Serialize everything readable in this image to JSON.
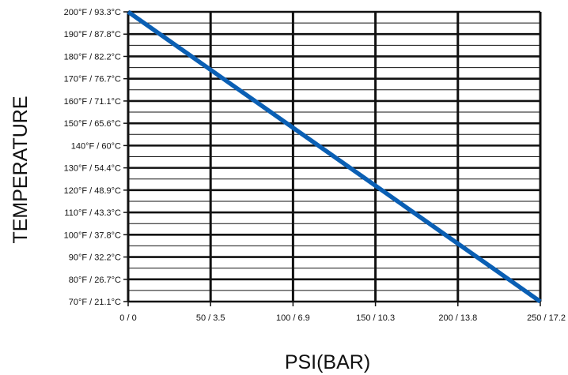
{
  "chart_data": {
    "type": "line",
    "xlabel": "PSI(BAR)",
    "ylabel": "TEMPERATURE",
    "x_ticks": [
      "0 / 0",
      "50 / 3.5",
      "100 / 6.9",
      "150 / 10.3",
      "200 / 13.8",
      "250 / 17.2"
    ],
    "x_tick_values": [
      0,
      50,
      100,
      150,
      200,
      250
    ],
    "y_ticks": [
      "70°F / 21.1°C",
      "80°F / 26.7°C",
      "90°F / 32.2°C",
      "100°F / 37.8°C",
      "110°F / 43.3°C",
      "120°F / 48.9°C",
      "130°F / 54.4°C",
      "140°F / 60°C",
      "150°F / 65.6°C",
      "160°F / 71.1°C",
      "170°F / 76.7°C",
      "180°F / 82.2°C",
      "190°F / 87.8°C",
      "200°F / 93.3°C"
    ],
    "y_tick_values": [
      70,
      80,
      90,
      100,
      110,
      120,
      130,
      140,
      150,
      160,
      170,
      180,
      190,
      200
    ],
    "xlim": [
      0,
      250
    ],
    "ylim": [
      70,
      200
    ],
    "grid": true,
    "line_color": "#0a5fb4",
    "series": [
      {
        "x": [
          0,
          250
        ],
        "y": [
          200,
          70
        ]
      }
    ]
  }
}
